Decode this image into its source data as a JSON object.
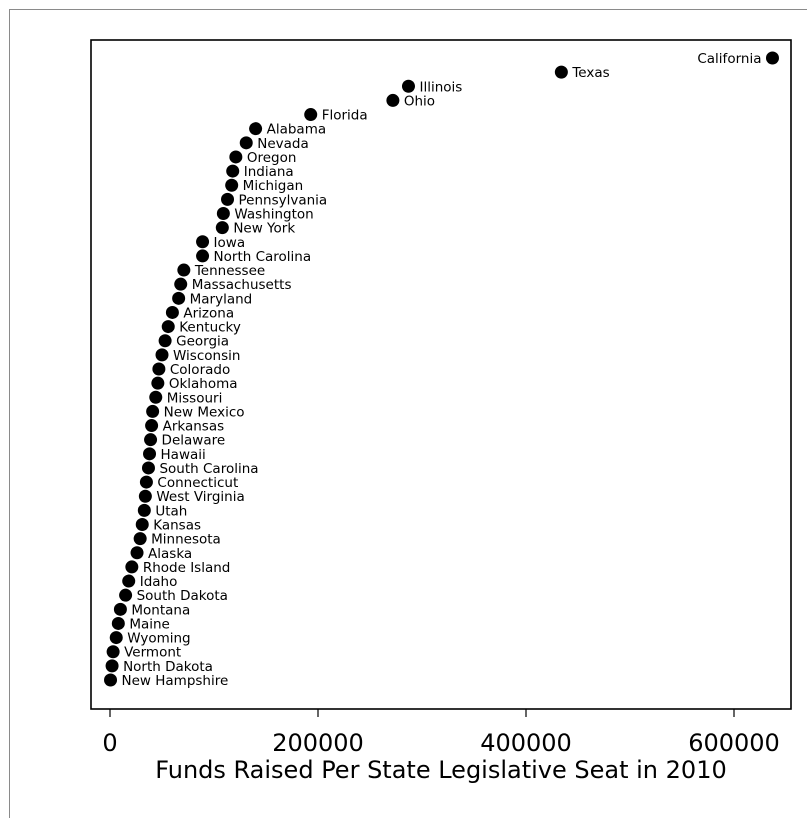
{
  "colors": {
    "marker": "#000000",
    "frame": "#8a8a8a",
    "background": "#ffffff"
  },
  "chart_data": {
    "type": "scatter",
    "title": "",
    "xlabel": "Funds Raised Per State Legislative Seat in 2010",
    "ylabel": "",
    "xlim": [
      -30000,
      660000
    ],
    "xticks": [
      0,
      200000,
      400000,
      600000
    ],
    "xtick_labels": [
      "0",
      "200000",
      "400000",
      "600000"
    ],
    "grid": false,
    "legend": "none",
    "y_order": "rank (lowest at bottom)",
    "points": [
      {
        "state": "New Hampshire",
        "x": 500
      },
      {
        "state": "North Dakota",
        "x": 2000
      },
      {
        "state": "Vermont",
        "x": 3000
      },
      {
        "state": "Wyoming",
        "x": 6000
      },
      {
        "state": "Maine",
        "x": 8000
      },
      {
        "state": "Montana",
        "x": 10000
      },
      {
        "state": "South Dakota",
        "x": 15000
      },
      {
        "state": "Idaho",
        "x": 18000
      },
      {
        "state": "Rhode Island",
        "x": 21000
      },
      {
        "state": "Alaska",
        "x": 26000
      },
      {
        "state": "Minnesota",
        "x": 29000
      },
      {
        "state": "Kansas",
        "x": 31000
      },
      {
        "state": "Utah",
        "x": 33000
      },
      {
        "state": "West Virginia",
        "x": 34000
      },
      {
        "state": "Connecticut",
        "x": 35000
      },
      {
        "state": "South Carolina",
        "x": 37000
      },
      {
        "state": "Hawaii",
        "x": 38000
      },
      {
        "state": "Delaware",
        "x": 39000
      },
      {
        "state": "Arkansas",
        "x": 40000
      },
      {
        "state": "New Mexico",
        "x": 41000
      },
      {
        "state": "Missouri",
        "x": 44000
      },
      {
        "state": "Oklahoma",
        "x": 46000
      },
      {
        "state": "Colorado",
        "x": 47000
      },
      {
        "state": "Wisconsin",
        "x": 50000
      },
      {
        "state": "Georgia",
        "x": 53000
      },
      {
        "state": "Kentucky",
        "x": 56000
      },
      {
        "state": "Arizona",
        "x": 60000
      },
      {
        "state": "Maryland",
        "x": 66000
      },
      {
        "state": "Massachusetts",
        "x": 68000
      },
      {
        "state": "Tennessee",
        "x": 71000
      },
      {
        "state": "North Carolina",
        "x": 89000
      },
      {
        "state": "Iowa",
        "x": 89000
      },
      {
        "state": "New York",
        "x": 108000
      },
      {
        "state": "Washington",
        "x": 109000
      },
      {
        "state": "Pennsylvania",
        "x": 113000
      },
      {
        "state": "Michigan",
        "x": 117000
      },
      {
        "state": "Indiana",
        "x": 118000
      },
      {
        "state": "Oregon",
        "x": 121000
      },
      {
        "state": "Nevada",
        "x": 131000
      },
      {
        "state": "Alabama",
        "x": 140000
      },
      {
        "state": "Florida",
        "x": 193000
      },
      {
        "state": "Ohio",
        "x": 272000
      },
      {
        "state": "Illinois",
        "x": 287000
      },
      {
        "state": "Texas",
        "x": 434000
      },
      {
        "state": "California",
        "x": 637000
      }
    ]
  }
}
